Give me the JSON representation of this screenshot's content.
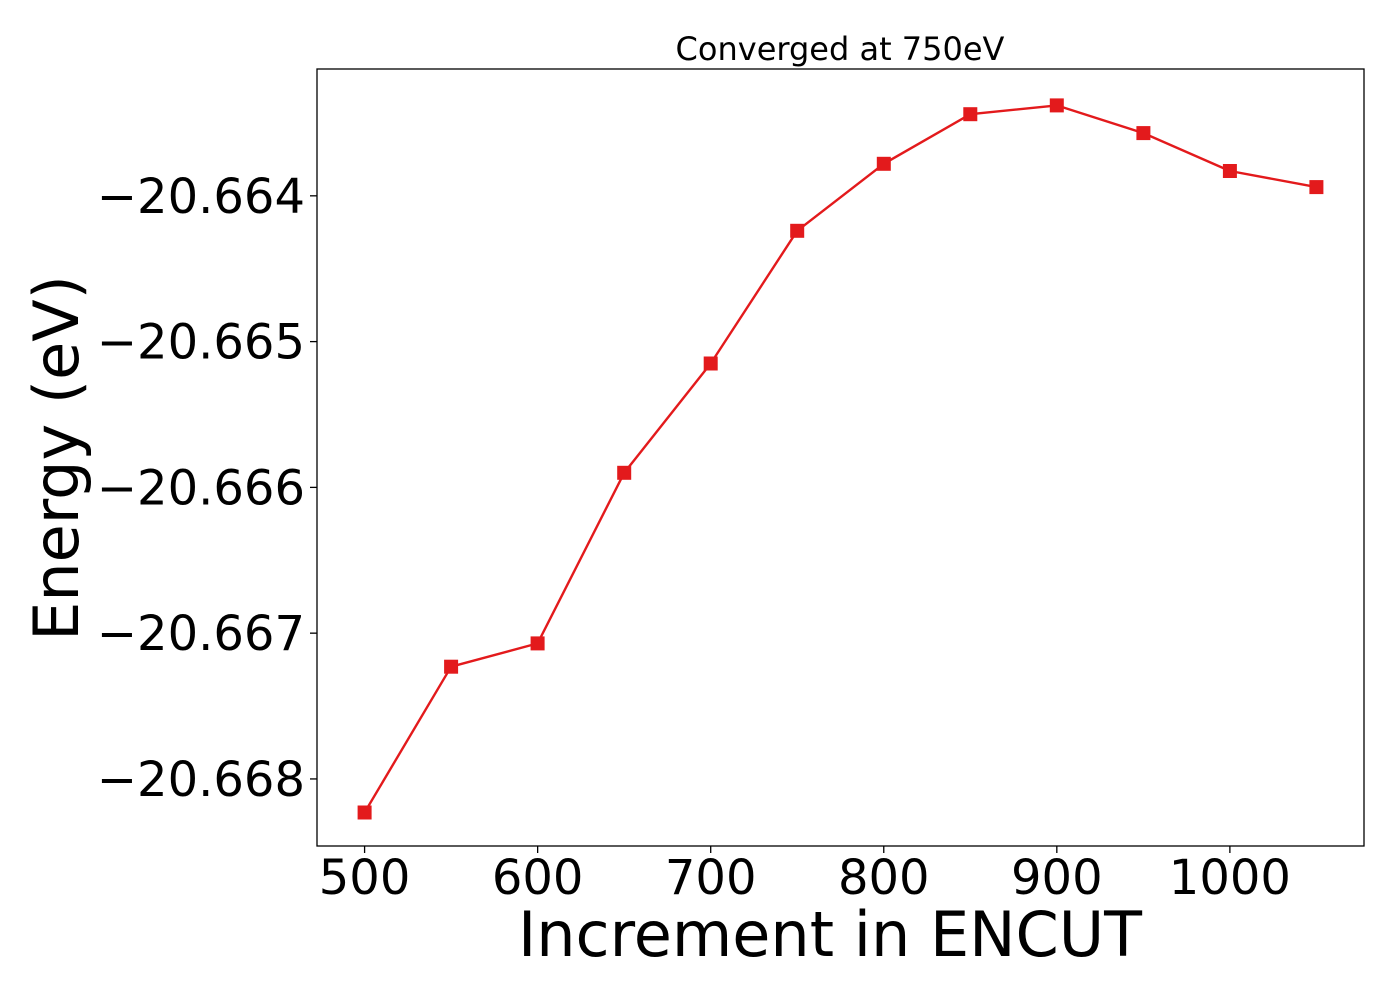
{
  "chart_data": {
    "type": "line",
    "title": "Converged at 750eV",
    "xlabel": "Increment in ENCUT",
    "ylabel": "Energy (eV)",
    "x": [
      500,
      550,
      600,
      650,
      700,
      750,
      800,
      850,
      900,
      950,
      1000,
      1050
    ],
    "series": [
      {
        "values": [
          -20.66823,
          -20.66723,
          -20.66707,
          -20.6659,
          -20.66515,
          -20.66424,
          -20.66378,
          -20.66344,
          -20.66338,
          -20.66357,
          -20.66383,
          -20.66394
        ],
        "color": "#e31a1c",
        "marker": "square"
      }
    ],
    "xlim": [
      472.5,
      1077.5
    ],
    "ylim": [
      -20.66846,
      -20.66313
    ],
    "xticks": [
      500,
      600,
      700,
      800,
      900,
      1000
    ],
    "xtick_labels": [
      "500",
      "600",
      "700",
      "800",
      "900",
      "1000"
    ],
    "yticks": [
      -20.668,
      -20.667,
      -20.666,
      -20.665,
      -20.664
    ],
    "ytick_labels": [
      "−20.668",
      "−20.667",
      "−20.666",
      "−20.665",
      "−20.664"
    ],
    "grid": false,
    "legend": "none"
  }
}
